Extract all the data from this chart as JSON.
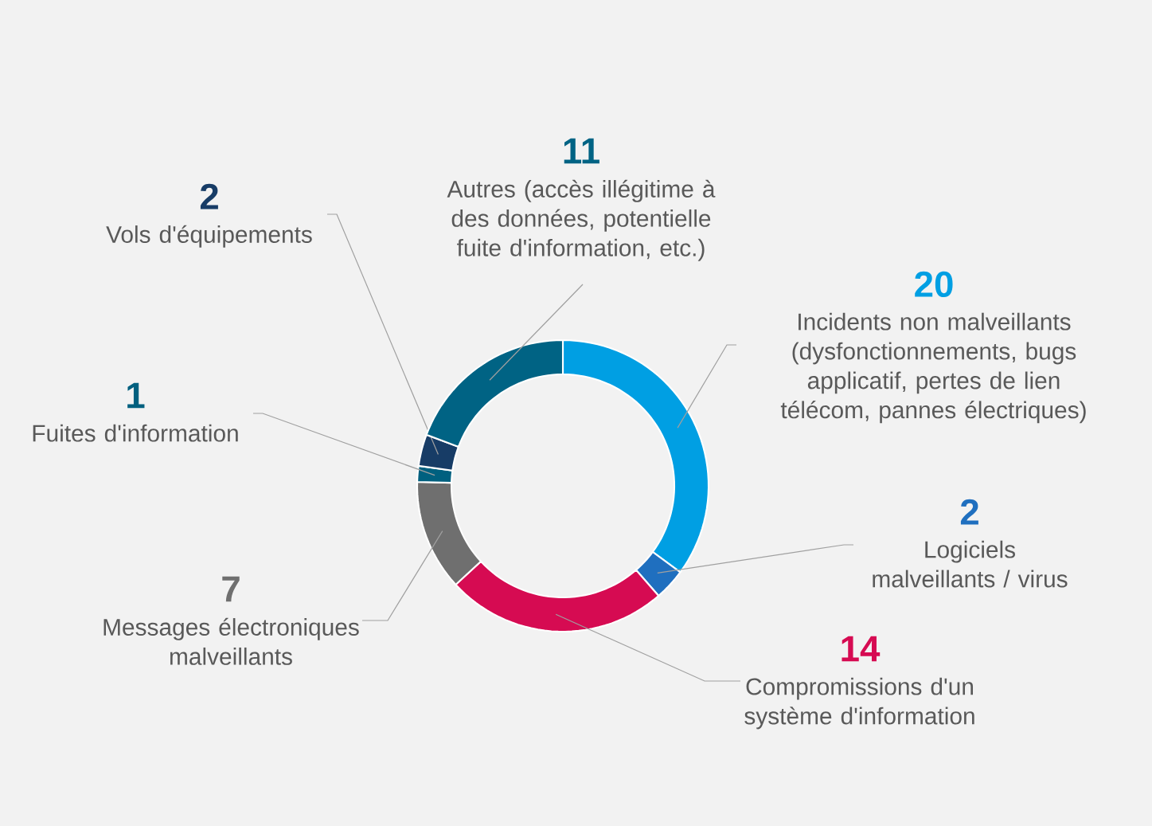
{
  "chart_data": {
    "type": "donut",
    "categories": [
      "Incidents non malveillants (dysfonctionnements, bugs applicatif, pertes de lien télécom, pannes électriques)",
      "Logiciels malveillants / virus",
      "Compromissions d'un système d'information",
      "Messages électroniques malveillants",
      "Fuites d'information",
      "Vols d'équipements",
      "Autres (accès illégitime à des données, potentielle fuite d'information, etc.)"
    ],
    "values": [
      20,
      2,
      14,
      7,
      1,
      2,
      11
    ],
    "colors": [
      "#009fe3",
      "#1f6fbf",
      "#d60b52",
      "#6f6f6f",
      "#00607f",
      "#173c66",
      "#006384"
    ],
    "data_labels": true
  }
}
